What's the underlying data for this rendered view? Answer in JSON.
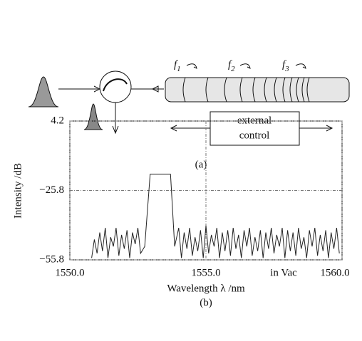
{
  "diagram": {
    "labels": [
      {
        "symbol": "f",
        "subscript": "1"
      },
      {
        "symbol": "f",
        "subscript": "2"
      },
      {
        "symbol": "f",
        "subscript": "3"
      }
    ],
    "control": [
      "external",
      "control"
    ],
    "caption": "(a)"
  },
  "chart_data": {
    "type": "line",
    "caption": "(b)",
    "xlabel": "Wavelength λ /nm",
    "ylabel": "Intensity /dB",
    "annotation": "in Vac",
    "color": "#222",
    "grid": true,
    "xlim": [
      1550,
      1560
    ],
    "xticks": [
      {
        "value": 1550,
        "label": "1550.0"
      },
      {
        "value": 1555,
        "label": "1555.0"
      },
      {
        "value": 1560,
        "label": "1560.0"
      }
    ],
    "ylim": [
      -55.8,
      4.2
    ],
    "yticks": [
      {
        "value": -55.8,
        "label": "−55.8"
      },
      {
        "value": -25.8,
        "label": "−25.8"
      },
      4.2
    ],
    "x": [
      1550.8,
      1550.9,
      1551.0,
      1551.1,
      1551.2,
      1551.3,
      1551.4,
      1551.5,
      1551.6,
      1551.7,
      1551.8,
      1551.9,
      1552.0,
      1552.1,
      1552.2,
      1552.3,
      1552.4,
      1552.5,
      1552.6,
      1552.75,
      1552.95,
      1553.7,
      1553.85,
      1554.0,
      1554.1,
      1554.2,
      1554.3,
      1554.4,
      1554.5,
      1554.6,
      1554.7,
      1554.8,
      1554.9,
      1555.0,
      1555.1,
      1555.2,
      1555.3,
      1555.4,
      1555.5,
      1555.6,
      1555.7,
      1555.8,
      1555.9,
      1556.0,
      1556.1,
      1556.2,
      1556.3,
      1556.4,
      1556.5,
      1556.6,
      1556.7,
      1556.8,
      1556.9,
      1557.0,
      1557.1,
      1557.2,
      1557.3,
      1557.4,
      1557.5,
      1557.6,
      1557.7,
      1557.8,
      1557.9,
      1558.0,
      1558.1,
      1558.2,
      1558.3,
      1558.4,
      1558.5,
      1558.6,
      1558.7,
      1558.8,
      1558.9,
      1559.0,
      1559.1,
      1559.2,
      1559.3,
      1559.4,
      1559.5,
      1559.6,
      1559.7,
      1559.8,
      1559.9
    ],
    "values": [
      -55,
      -47,
      -53,
      -44,
      -52,
      -42,
      -55,
      -46,
      -50,
      -42,
      -54,
      -45,
      -51,
      -43,
      -55,
      -44,
      -49,
      -42,
      -53,
      -50,
      -18.8,
      -18.8,
      -50,
      -42,
      -55,
      -44,
      -51,
      -42,
      -54,
      -46,
      -52,
      -43,
      -55,
      -41,
      -53,
      -45,
      -50,
      -42,
      -55,
      -44,
      -52,
      -43,
      -54,
      -42,
      -51,
      -45,
      -55,
      -43,
      -50,
      -42,
      -54,
      -46,
      -52,
      -43,
      -55,
      -44,
      -51,
      -42,
      -53,
      -45,
      -50,
      -42,
      -55,
      -43,
      -52,
      -44,
      -54,
      -42,
      -51,
      -46,
      -55,
      -43,
      -50,
      -42,
      -54,
      -45,
      -52,
      -43,
      -55,
      -44,
      -51,
      -42,
      -53
    ]
  }
}
